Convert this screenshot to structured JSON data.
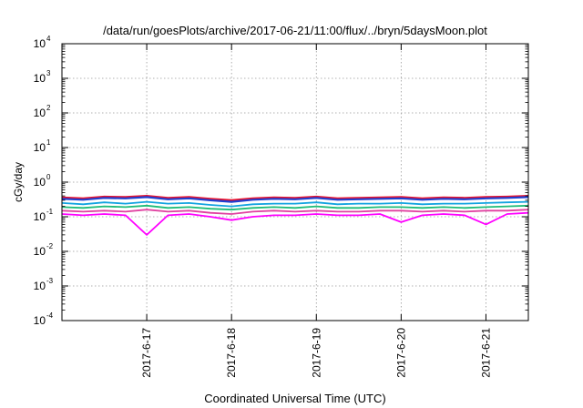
{
  "chart_data": {
    "type": "line",
    "title": "/data/run/goesPlots/archive/2017-06-21/11:00/flux/../bryn/5daysMoon.plot",
    "xlabel": "Coordinated Universal Time (UTC)",
    "ylabel": "cGy/day",
    "yscale": "log",
    "ylim": [
      0.0001,
      10000
    ],
    "y_ticks": [
      {
        "base": "10",
        "exp": "-4",
        "value": 0.0001
      },
      {
        "base": "10",
        "exp": "-3",
        "value": 0.001
      },
      {
        "base": "10",
        "exp": "-2",
        "value": 0.01
      },
      {
        "base": "10",
        "exp": "-1",
        "value": 0.1
      },
      {
        "base": "10",
        "exp": "0",
        "value": 1
      },
      {
        "base": "10",
        "exp": "1",
        "value": 10
      },
      {
        "base": "10",
        "exp": "2",
        "value": 100
      },
      {
        "base": "10",
        "exp": "3",
        "value": 1000
      },
      {
        "base": "10",
        "exp": "4",
        "value": 10000
      }
    ],
    "xlim": [
      "2017-06-16 00:00",
      "2017-06-21 12:00"
    ],
    "x_ticks": [
      "2017-6-17",
      "2017-6-18",
      "2017-6-19",
      "2017-6-20",
      "2017-6-21"
    ],
    "grid": true,
    "series": [
      {
        "color": "#e8102c",
        "days": [
          0.0,
          0.25,
          0.5,
          0.75,
          1.0,
          1.25,
          1.5,
          1.75,
          2.0,
          2.25,
          2.5,
          2.75,
          3.0,
          3.25,
          3.5,
          3.75,
          4.0,
          4.25,
          4.5,
          4.75,
          5.0,
          5.25,
          5.5
        ],
        "values": [
          0.36,
          0.34,
          0.38,
          0.37,
          0.4,
          0.35,
          0.37,
          0.33,
          0.3,
          0.34,
          0.36,
          0.35,
          0.38,
          0.34,
          0.35,
          0.36,
          0.37,
          0.34,
          0.36,
          0.35,
          0.37,
          0.38,
          0.4
        ]
      },
      {
        "color": "#1f3fd1",
        "days": [
          0.0,
          0.25,
          0.5,
          0.75,
          1.0,
          1.25,
          1.5,
          1.75,
          2.0,
          2.25,
          2.5,
          2.75,
          3.0,
          3.25,
          3.5,
          3.75,
          4.0,
          4.25,
          4.5,
          4.75,
          5.0,
          5.25,
          5.5
        ],
        "values": [
          0.33,
          0.31,
          0.35,
          0.34,
          0.37,
          0.32,
          0.34,
          0.3,
          0.27,
          0.31,
          0.33,
          0.32,
          0.35,
          0.31,
          0.32,
          0.33,
          0.34,
          0.31,
          0.33,
          0.32,
          0.34,
          0.35,
          0.37
        ]
      },
      {
        "color": "#12a3e0",
        "days": [
          0.0,
          0.25,
          0.5,
          0.75,
          1.0,
          1.25,
          1.5,
          1.75,
          2.0,
          2.25,
          2.5,
          2.75,
          3.0,
          3.25,
          3.5,
          3.75,
          4.0,
          4.25,
          4.5,
          4.75,
          5.0,
          5.25,
          5.5
        ],
        "values": [
          0.25,
          0.23,
          0.26,
          0.24,
          0.27,
          0.24,
          0.25,
          0.22,
          0.2,
          0.23,
          0.24,
          0.24,
          0.26,
          0.23,
          0.24,
          0.24,
          0.25,
          0.23,
          0.24,
          0.24,
          0.25,
          0.26,
          0.27
        ]
      },
      {
        "color": "#1ebc78",
        "days": [
          0.0,
          0.25,
          0.5,
          0.75,
          1.0,
          1.25,
          1.5,
          1.75,
          2.0,
          2.25,
          2.5,
          2.75,
          3.0,
          3.25,
          3.5,
          3.75,
          4.0,
          4.25,
          4.5,
          4.75,
          5.0,
          5.25,
          5.5
        ],
        "values": [
          0.19,
          0.18,
          0.2,
          0.19,
          0.21,
          0.18,
          0.19,
          0.17,
          0.16,
          0.18,
          0.19,
          0.18,
          0.2,
          0.18,
          0.18,
          0.19,
          0.19,
          0.18,
          0.19,
          0.18,
          0.19,
          0.2,
          0.21
        ]
      },
      {
        "color": "#e040a0",
        "days": [
          0.0,
          0.25,
          0.5,
          0.75,
          1.0,
          1.25,
          1.5,
          1.75,
          2.0,
          2.25,
          2.5,
          2.75,
          3.0,
          3.25,
          3.5,
          3.75,
          4.0,
          4.25,
          4.5,
          4.75,
          5.0,
          5.25,
          5.5
        ],
        "values": [
          0.15,
          0.14,
          0.15,
          0.14,
          0.16,
          0.14,
          0.15,
          0.13,
          0.12,
          0.14,
          0.15,
          0.14,
          0.15,
          0.14,
          0.14,
          0.15,
          0.15,
          0.14,
          0.15,
          0.14,
          0.15,
          0.15,
          0.16
        ]
      },
      {
        "color": "#ff00ff",
        "days": [
          0.0,
          0.25,
          0.5,
          0.75,
          1.0,
          1.25,
          1.5,
          1.75,
          2.0,
          2.25,
          2.5,
          2.75,
          3.0,
          3.25,
          3.5,
          3.75,
          4.0,
          4.25,
          4.5,
          4.75,
          5.0,
          5.25,
          5.5
        ],
        "values": [
          0.12,
          0.11,
          0.12,
          0.11,
          0.03,
          0.11,
          0.12,
          0.1,
          0.08,
          0.1,
          0.11,
          0.11,
          0.12,
          0.11,
          0.11,
          0.12,
          0.07,
          0.11,
          0.12,
          0.11,
          0.06,
          0.12,
          0.13
        ]
      }
    ]
  }
}
